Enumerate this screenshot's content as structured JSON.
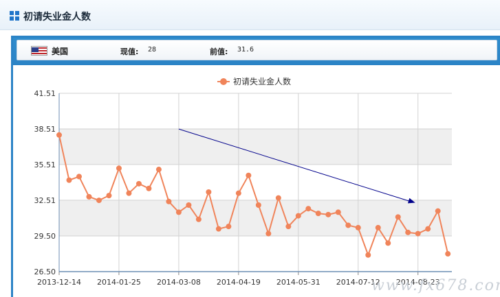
{
  "header": {
    "title": "初请失业金人数",
    "icon": "grid-icon"
  },
  "info": {
    "country": "美国",
    "current_label": "现值:",
    "current_value": "28",
    "previous_label": "前值:",
    "previous_value": "31.6"
  },
  "watermark": "www.fx678.com",
  "colors": {
    "series": "#f0845a",
    "arrow": "#00008b",
    "frame": "#2b83c6"
  },
  "chart_data": {
    "type": "line",
    "legend": {
      "name": "初请失业金人数",
      "placement": "top-center"
    },
    "xlabel": "",
    "ylabel": "",
    "ylim": [
      26.5,
      41.51
    ],
    "yticks": [
      "26.50",
      "29.50",
      "32.51",
      "35.51",
      "38.51",
      "41.51"
    ],
    "xticks": [
      "2013-12-14",
      "2014-01-25",
      "2014-03-08",
      "2014-04-19",
      "2014-05-31",
      "2014-07-12",
      "2014-08-23"
    ],
    "grid": true,
    "series": [
      {
        "name": "初请失业金人数",
        "x_start": "2013-12-14",
        "interval_days": 7,
        "values": [
          38.0,
          34.2,
          34.5,
          32.8,
          32.5,
          32.9,
          35.2,
          33.1,
          33.9,
          33.5,
          35.1,
          32.4,
          31.5,
          32.1,
          30.9,
          33.2,
          30.1,
          30.3,
          33.1,
          34.6,
          32.1,
          29.7,
          32.7,
          30.3,
          31.2,
          31.8,
          31.4,
          31.3,
          31.5,
          30.4,
          30.2,
          27.9,
          30.2,
          28.9,
          31.1,
          29.8,
          29.7,
          30.1,
          31.6,
          28.0
        ]
      }
    ],
    "annotations": [
      {
        "type": "arrow",
        "from": [
          "2014-03-08",
          38.5
        ],
        "to": [
          "2014-08-23",
          32.3
        ]
      }
    ]
  }
}
